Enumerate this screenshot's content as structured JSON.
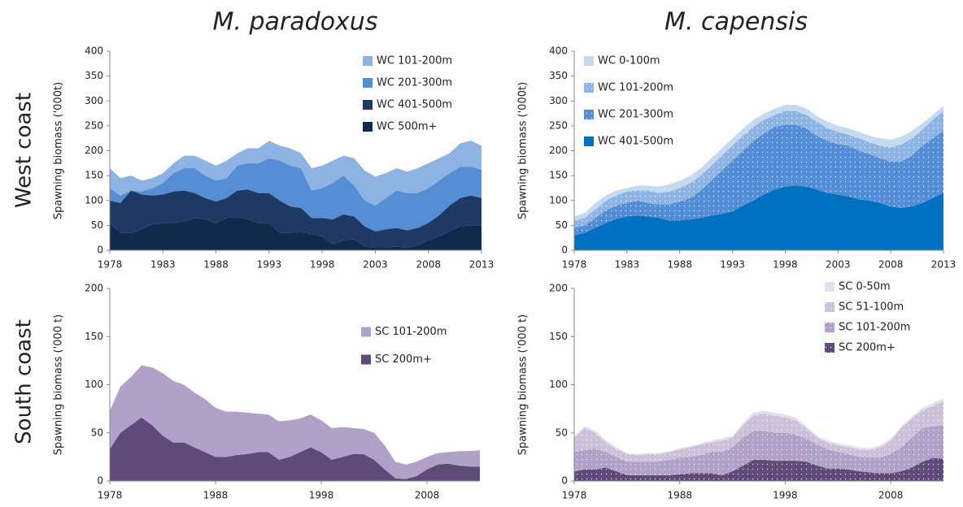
{
  "columns": [
    "M. paradoxus",
    "M. capensis"
  ],
  "rows": [
    "West coast",
    "South coast"
  ],
  "chart_data": [
    {
      "type": "stacked_area",
      "y_label": "Spawning biomass ('000t)",
      "x": [
        1978,
        1979,
        1980,
        1981,
        1982,
        1983,
        1984,
        1985,
        1986,
        1987,
        1988,
        1989,
        1990,
        1991,
        1992,
        1993,
        1994,
        1995,
        1996,
        1997,
        1998,
        1999,
        2000,
        2001,
        2002,
        2003,
        2004,
        2005,
        2006,
        2007,
        2008,
        2009,
        2010,
        2011,
        2012,
        2013
      ],
      "xlim": [
        1978,
        2013
      ],
      "xticks": [
        1978,
        1983,
        1988,
        1993,
        1998,
        2003,
        2008,
        2013
      ],
      "ylim": [
        0,
        400
      ],
      "yticks": [
        0,
        50,
        100,
        150,
        200,
        250,
        300,
        350,
        400
      ],
      "legend": "upper right",
      "series": [
        {
          "name": "WC 500m+",
          "color": "#13294b",
          "values": [
            55,
            35,
            35,
            42,
            52,
            55,
            55,
            58,
            65,
            62,
            55,
            65,
            67,
            62,
            55,
            55,
            35,
            35,
            38,
            32,
            28,
            12,
            20,
            22,
            8,
            5,
            5,
            8,
            5,
            10,
            20,
            28,
            38,
            48,
            50,
            50
          ]
        },
        {
          "name": "WC 401-500m",
          "color": "#1f3864",
          "values": [
            45,
            60,
            85,
            70,
            58,
            57,
            63,
            62,
            50,
            43,
            43,
            40,
            53,
            60,
            60,
            60,
            65,
            53,
            47,
            33,
            37,
            50,
            52,
            46,
            40,
            33,
            37,
            37,
            35,
            35,
            35,
            42,
            52,
            57,
            60,
            55
          ]
        },
        {
          "name": "WC 201-300m",
          "color": "#558ed5",
          "values": [
            25,
            15,
            0,
            6,
            15,
            23,
            37,
            45,
            50,
            45,
            42,
            40,
            50,
            53,
            60,
            70,
            80,
            82,
            80,
            55,
            60,
            73,
            78,
            62,
            52,
            52,
            63,
            75,
            75,
            70,
            70,
            70,
            65,
            63,
            58,
            57
          ]
        },
        {
          "name": "WC 101-200m",
          "color": "#8db3e2",
          "values": [
            40,
            35,
            30,
            22,
            20,
            20,
            20,
            25,
            25,
            30,
            30,
            35,
            25,
            30,
            30,
            35,
            30,
            35,
            30,
            45,
            45,
            45,
            40,
            55,
            60,
            58,
            50,
            45,
            43,
            50,
            50,
            45,
            40,
            47,
            52,
            48
          ]
        }
      ]
    },
    {
      "type": "stacked_area",
      "y_label": "Spawning biomass ('000t)",
      "x": [
        1978,
        1979,
        1980,
        1981,
        1982,
        1983,
        1984,
        1985,
        1986,
        1987,
        1988,
        1989,
        1990,
        1991,
        1992,
        1993,
        1994,
        1995,
        1996,
        1997,
        1998,
        1999,
        2000,
        2001,
        2002,
        2003,
        2004,
        2005,
        2006,
        2007,
        2008,
        2009,
        2010,
        2011,
        2012,
        2013
      ],
      "xlim": [
        1978,
        2013
      ],
      "xticks": [
        1978,
        1983,
        1988,
        1993,
        1998,
        2003,
        2008,
        2013
      ],
      "ylim": [
        0,
        400
      ],
      "yticks": [
        0,
        50,
        100,
        150,
        200,
        250,
        300,
        350,
        400
      ],
      "legend": "upper left",
      "series": [
        {
          "name": "WC 401-500m",
          "color": "#0070c0",
          "pattern": "solid",
          "values": [
            30,
            35,
            45,
            55,
            63,
            68,
            70,
            68,
            65,
            60,
            60,
            62,
            65,
            70,
            73,
            78,
            90,
            100,
            112,
            122,
            128,
            130,
            128,
            122,
            115,
            112,
            108,
            102,
            100,
            95,
            88,
            85,
            88,
            95,
            105,
            115
          ]
        },
        {
          "name": "WC 201-300m",
          "color": "#538dd5",
          "pattern": "dotted",
          "values": [
            15,
            15,
            20,
            25,
            27,
            27,
            30,
            27,
            27,
            32,
            38,
            43,
            55,
            70,
            87,
            102,
            110,
            120,
            123,
            126,
            124,
            122,
            117,
            108,
            105,
            101,
            102,
            98,
            93,
            90,
            90,
            93,
            102,
            115,
            120,
            125
          ]
        },
        {
          "name": "WC 101-200m",
          "color": "#8db4e2",
          "pattern": "dotted",
          "values": [
            15,
            15,
            17,
            20,
            20,
            23,
            20,
            25,
            23,
            26,
            27,
            30,
            30,
            30,
            30,
            30,
            30,
            28,
            27,
            24,
            28,
            28,
            27,
            28,
            25,
            25,
            22,
            25,
            24,
            25,
            29,
            34,
            35,
            32,
            37,
            40
          ]
        },
        {
          "name": "WC 0-100m",
          "color": "#c5d9f1",
          "pattern": "solid",
          "values": [
            8,
            10,
            13,
            10,
            10,
            7,
            10,
            10,
            13,
            14,
            15,
            15,
            15,
            15,
            15,
            15,
            15,
            14,
            13,
            13,
            12,
            12,
            13,
            12,
            13,
            12,
            13,
            13,
            13,
            15,
            15,
            16,
            15,
            13,
            10,
            10
          ]
        }
      ]
    },
    {
      "type": "stacked_area",
      "y_label": "Spawning biomass ('000 t)",
      "x": [
        1978,
        1979,
        1980,
        1981,
        1982,
        1983,
        1984,
        1985,
        1986,
        1987,
        1988,
        1989,
        1990,
        1991,
        1992,
        1993,
        1994,
        1995,
        1996,
        1997,
        1998,
        1999,
        2000,
        2001,
        2002,
        2003,
        2004,
        2005,
        2006,
        2007,
        2008,
        2009,
        2010,
        2011,
        2012,
        2013
      ],
      "xlim": [
        1978,
        2013
      ],
      "xticks": [
        1978,
        1988,
        1998,
        2008
      ],
      "ylim": [
        0,
        200
      ],
      "yticks": [
        0,
        50,
        100,
        150,
        200
      ],
      "legend": "center right",
      "series": [
        {
          "name": "SC 200m+",
          "color": "#5f4b7a",
          "values": [
            33,
            50,
            58,
            66,
            58,
            47,
            40,
            40,
            35,
            30,
            25,
            25,
            27,
            28,
            30,
            30,
            22,
            25,
            30,
            35,
            30,
            22,
            25,
            28,
            28,
            22,
            12,
            3,
            2,
            5,
            12,
            17,
            18,
            16,
            15,
            15
          ]
        },
        {
          "name": "SC 101-200m",
          "color": "#b1a0c7",
          "values": [
            40,
            48,
            50,
            54,
            60,
            65,
            64,
            60,
            57,
            55,
            51,
            47,
            45,
            43,
            40,
            39,
            40,
            38,
            35,
            34,
            33,
            33,
            31,
            27,
            26,
            28,
            25,
            17,
            15,
            15,
            13,
            12,
            12,
            15,
            16,
            17
          ]
        }
      ]
    },
    {
      "type": "stacked_area",
      "y_label": "Spawning biomass ('000 t)",
      "x": [
        1978,
        1979,
        1980,
        1981,
        1982,
        1983,
        1984,
        1985,
        1986,
        1987,
        1988,
        1989,
        1990,
        1991,
        1992,
        1993,
        1994,
        1995,
        1996,
        1997,
        1998,
        1999,
        2000,
        2001,
        2002,
        2003,
        2004,
        2005,
        2006,
        2007,
        2008,
        2009,
        2010,
        2011,
        2012,
        2013
      ],
      "xlim": [
        1978,
        2013
      ],
      "xticks": [
        1978,
        1988,
        1998,
        2008
      ],
      "ylim": [
        0,
        200
      ],
      "yticks": [
        0,
        50,
        100,
        150,
        200
      ],
      "legend": "upper right",
      "series": [
        {
          "name": "SC 200m+",
          "color": "#5f4b7a",
          "pattern": "dotted",
          "values": [
            10,
            12,
            12,
            14,
            10,
            6,
            6,
            6,
            6,
            6,
            7,
            8,
            8,
            8,
            6,
            10,
            16,
            22,
            22,
            21,
            21,
            21,
            20,
            16,
            13,
            13,
            12,
            10,
            9,
            8,
            8,
            10,
            14,
            20,
            24,
            23
          ]
        },
        {
          "name": "SC 101-200m",
          "color": "#b1a0c7",
          "pattern": "dotted",
          "values": [
            20,
            20,
            22,
            16,
            15,
            14,
            14,
            14,
            14,
            16,
            17,
            17,
            19,
            22,
            24,
            25,
            29,
            30,
            30,
            29,
            29,
            27,
            24,
            22,
            20,
            17,
            16,
            15,
            15,
            16,
            20,
            25,
            31,
            35,
            33,
            35
          ]
        },
        {
          "name": "SC 51-100m",
          "color": "#ccc0da",
          "pattern": "dotted",
          "values": [
            15,
            23,
            16,
            10,
            8,
            8,
            7,
            8,
            8,
            8,
            9,
            10,
            11,
            10,
            12,
            10,
            13,
            16,
            18,
            18,
            16,
            15,
            11,
            7,
            7,
            7,
            7,
            8,
            8,
            11,
            14,
            20,
            20,
            18,
            21,
            25
          ]
        },
        {
          "name": "SC 0-50m",
          "color": "#e4dfec",
          "pattern": "solid",
          "values": [
            2,
            2,
            2,
            2,
            2,
            1,
            1,
            1,
            1,
            1,
            1,
            1,
            1,
            2,
            2,
            2,
            2,
            3,
            3,
            3,
            3,
            3,
            2,
            2,
            2,
            2,
            2,
            2,
            2,
            2,
            2,
            2,
            2,
            3,
            3,
            3
          ]
        }
      ]
    }
  ]
}
